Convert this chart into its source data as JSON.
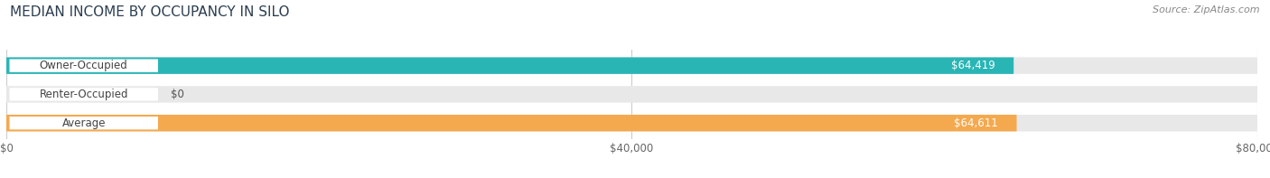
{
  "title": "MEDIAN INCOME BY OCCUPANCY IN SILO",
  "source": "Source: ZipAtlas.com",
  "categories": [
    "Owner-Occupied",
    "Renter-Occupied",
    "Average"
  ],
  "values": [
    64419,
    0,
    64611
  ],
  "labels": [
    "$64,419",
    "$0",
    "$64,611"
  ],
  "bar_colors": [
    "#2ab5b5",
    "#c4a8d4",
    "#f5a94e"
  ],
  "bar_bg_color": "#e8e8e8",
  "xlim": [
    0,
    80000
  ],
  "xticks": [
    0,
    40000,
    80000
  ],
  "xtick_labels": [
    "$0",
    "$40,000",
    "$80,000"
  ],
  "title_fontsize": 11,
  "source_fontsize": 8,
  "label_fontsize": 8.5,
  "figsize": [
    14.06,
    1.97
  ],
  "dpi": 100
}
